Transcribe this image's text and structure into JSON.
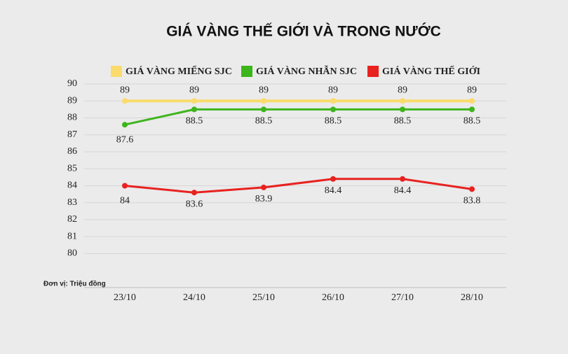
{
  "chart_data": {
    "type": "line",
    "title": "GIÁ VÀNG THẾ GIỚI VÀ TRONG NƯỚC",
    "annotation": "Đơn vị: Triệu đồng",
    "categories": [
      "23/10",
      "24/10",
      "25/10",
      "26/10",
      "27/10",
      "28/10"
    ],
    "series": [
      {
        "name": "GIÁ VÀNG MIẾNG SJC",
        "color": "#fadb6c",
        "label_position": "above",
        "values": [
          89,
          89,
          89,
          89,
          89,
          89
        ]
      },
      {
        "name": "GIÁ VÀNG NHẪN SJC",
        "color": "#3db51c",
        "label_position": "below",
        "values": [
          87.6,
          88.5,
          88.5,
          88.5,
          88.5,
          88.5
        ]
      },
      {
        "name": "GIÁ VÀNG THẾ GIỚI",
        "color": "#e7221f",
        "label_position": "below",
        "values": [
          84,
          83.6,
          83.9,
          84.4,
          84.4,
          83.8
        ]
      }
    ],
    "ylim": [
      78,
      90
    ],
    "yticks": [
      80,
      81,
      82,
      83,
      84,
      85,
      86,
      87,
      88,
      89,
      90
    ],
    "grid": true,
    "legend": "top"
  }
}
